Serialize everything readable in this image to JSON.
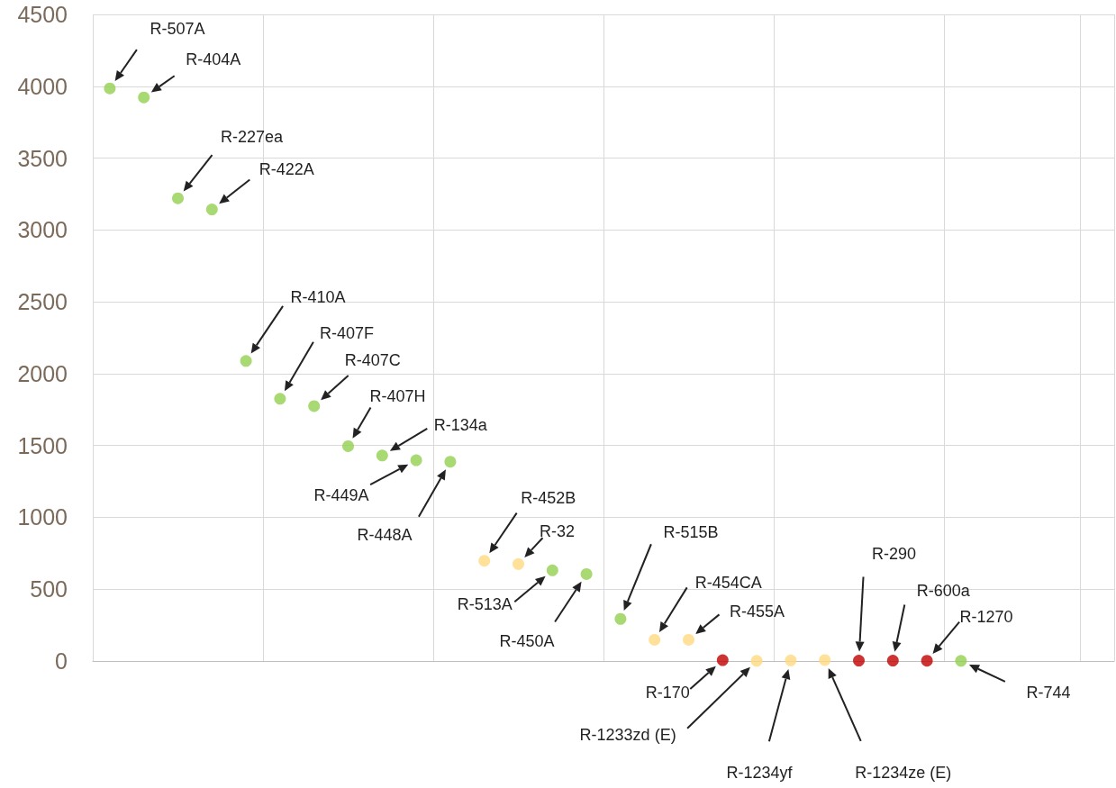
{
  "chart_data": {
    "type": "scatter",
    "categories": [
      null,
      null,
      null,
      null,
      null,
      null,
      null,
      null,
      null,
      null,
      null,
      null,
      null,
      null,
      null,
      null,
      null,
      null,
      null,
      null,
      null,
      null,
      null,
      null,
      null,
      null,
      null,
      null,
      null,
      null
    ],
    "values": [
      3985,
      3922,
      3220,
      3143,
      2088,
      1825,
      1774,
      1495,
      1430,
      1397,
      1387,
      698,
      675,
      631,
      605,
      293,
      148,
      148,
      6,
      1,
      4,
      7,
      3,
      3,
      2,
      1,
      null,
      null,
      null,
      null
    ],
    "colors": [
      "#92d050",
      "#92d050",
      "#92d050",
      "#92d050",
      "#92d050",
      "#92d050",
      "#92d050",
      "#92d050",
      "#92d050",
      "#92d050",
      "#92d050",
      "#ffd97f",
      "#ffd97f",
      "#92d050",
      "#92d050",
      "#92d050",
      "#ffd97f",
      "#ffd97f",
      "#c00000",
      "#ffd97f",
      "#ffd97f",
      "#ffd97f",
      "#c00000",
      "#c00000",
      "#c00000",
      "#92d050",
      null,
      null,
      null,
      null
    ],
    "ylim": [
      0,
      4500
    ],
    "yticks": [
      0,
      500,
      1000,
      1500,
      2000,
      2500,
      3000,
      3500,
      4000,
      4500
    ],
    "tick_labels": "y",
    "grid": true,
    "marker": "circle",
    "annotations": [
      "R-507A",
      "R-404A",
      "R-227ea",
      "R-422A",
      "R-410A",
      "R-407F",
      "R-407C",
      "R-407H",
      "R-134a",
      "R-449A",
      "R-448A",
      "R-452B",
      "R-32",
      "R-513A",
      "R-450A",
      "R-515B",
      "R-454CA",
      "R-455A",
      "R-170",
      "R-1233zd (E)",
      "R-1234yf",
      "R-1234ze (E)",
      "R-290",
      "R-600a",
      "R-1270",
      "R-744"
    ]
  }
}
